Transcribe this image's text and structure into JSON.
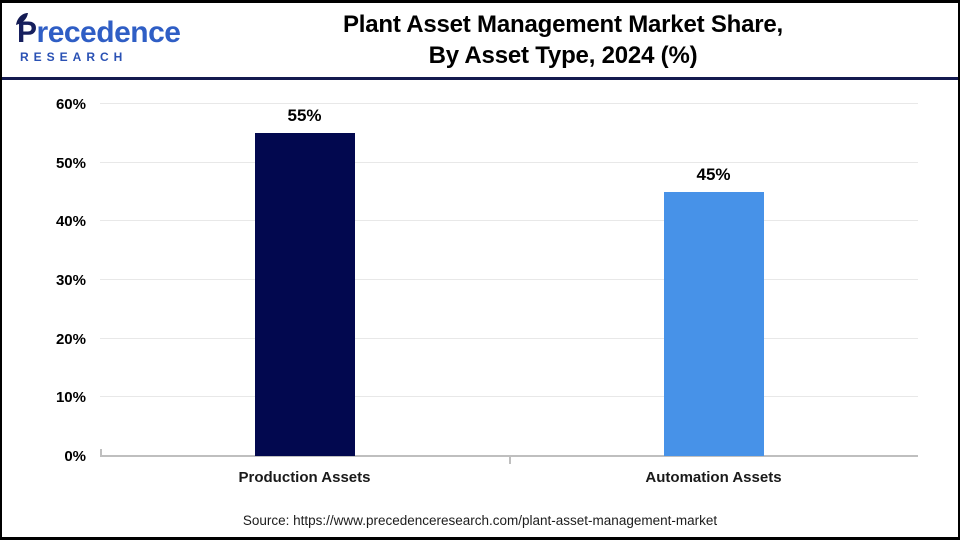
{
  "header": {
    "logo_name": "Precedence",
    "logo_subtitle": "RESEARCH",
    "title_line1": "Plant Asset Management Market Share,",
    "title_line2": "By Asset Type, 2024 (%)"
  },
  "chart_data": {
    "type": "bar",
    "title": "Plant Asset Management Market Share, By Asset Type, 2024 (%)",
    "categories": [
      "Production Assets",
      "Automation Assets"
    ],
    "values": [
      55,
      45
    ],
    "value_labels": [
      "55%",
      "45%"
    ],
    "bar_colors": [
      "#02084f",
      "#4792e8"
    ],
    "xlabel": "",
    "ylabel": "",
    "ylim": [
      0,
      60
    ],
    "yticks": [
      0,
      10,
      20,
      30,
      40,
      50,
      60
    ],
    "ytick_labels": [
      "0%",
      "10%",
      "20%",
      "30%",
      "40%",
      "50%",
      "60%"
    ],
    "grid": true,
    "legend": false
  },
  "footer": {
    "source": "Source: https://www.precedenceresearch.com/plant-asset-management-market"
  },
  "colors": {
    "bar_production": "#02084f",
    "bar_automation": "#4792e8",
    "header_divider": "#141a4f",
    "gridline": "#e8e8e8",
    "axis": "#bfbfbf",
    "logo_navy": "#161f5e",
    "logo_blue": "#2f5ec5"
  }
}
